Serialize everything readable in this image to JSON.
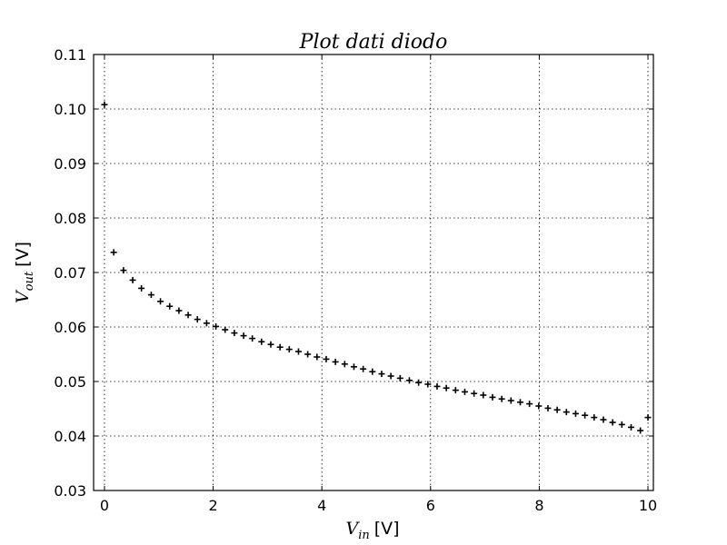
{
  "chart_data": {
    "type": "scatter",
    "title": "Plot dati diodo",
    "xlabel": {
      "symbol": "V",
      "subscript": "in",
      "unit": "[V]"
    },
    "ylabel": {
      "symbol": "V",
      "subscript": "out",
      "unit": "[V]"
    },
    "xlim": [
      -0.2,
      10.1
    ],
    "ylim": [
      0.03,
      0.11
    ],
    "xticks": [
      0,
      2,
      4,
      6,
      8,
      10
    ],
    "xtick_labels": [
      "0",
      "2",
      "4",
      "6",
      "8",
      "10"
    ],
    "yticks": [
      0.03,
      0.04,
      0.05,
      0.06,
      0.07,
      0.08,
      0.09,
      0.1,
      0.11
    ],
    "ytick_labels": [
      "0.03",
      "0.04",
      "0.05",
      "0.06",
      "0.07",
      "0.08",
      "0.09",
      "0.10",
      "0.11"
    ],
    "grid": true,
    "marker": "plus",
    "color": "#000000",
    "x": [
      0.0,
      0.17,
      0.35,
      0.52,
      0.68,
      0.86,
      1.03,
      1.2,
      1.37,
      1.54,
      1.71,
      1.88,
      2.05,
      2.22,
      2.39,
      2.56,
      2.72,
      2.89,
      3.06,
      3.23,
      3.4,
      3.57,
      3.74,
      3.91,
      4.08,
      4.25,
      4.42,
      4.59,
      4.76,
      4.93,
      5.1,
      5.27,
      5.44,
      5.61,
      5.78,
      5.95,
      6.12,
      6.29,
      6.46,
      6.63,
      6.8,
      6.97,
      7.14,
      7.31,
      7.48,
      7.65,
      7.82,
      7.99,
      8.16,
      8.33,
      8.5,
      8.67,
      8.84,
      9.01,
      9.18,
      9.35,
      9.52,
      9.69,
      9.86,
      10.0
    ],
    "y": [
      0.1008,
      0.0737,
      0.0704,
      0.0686,
      0.0671,
      0.0659,
      0.0647,
      0.0638,
      0.063,
      0.0622,
      0.0614,
      0.0607,
      0.0601,
      0.0595,
      0.0589,
      0.0584,
      0.0579,
      0.0573,
      0.0568,
      0.0563,
      0.0559,
      0.0555,
      0.055,
      0.0545,
      0.0541,
      0.0536,
      0.0532,
      0.0527,
      0.0523,
      0.0518,
      0.0514,
      0.051,
      0.0506,
      0.0502,
      0.0498,
      0.0495,
      0.0491,
      0.0488,
      0.0484,
      0.0481,
      0.0478,
      0.0475,
      0.0471,
      0.0468,
      0.0465,
      0.0462,
      0.0459,
      0.0455,
      0.0451,
      0.0448,
      0.0444,
      0.0441,
      0.0438,
      0.0434,
      0.043,
      0.0425,
      0.0421,
      0.0416,
      0.041,
      0.0434
    ]
  }
}
